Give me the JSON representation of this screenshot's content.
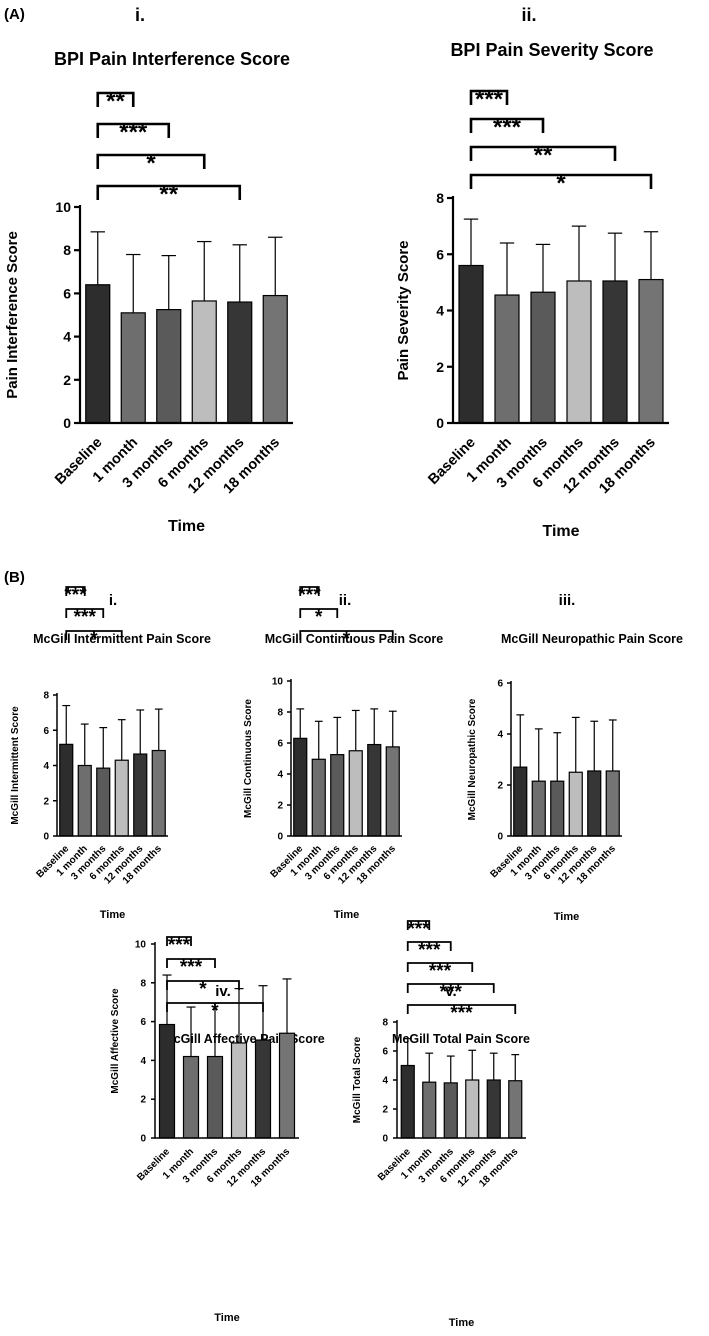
{
  "section_labels": [
    "(A)",
    "(B)"
  ],
  "chart_data": [
    {
      "type": "bar",
      "panel": "i.",
      "title": "BPI Pain Interference Score",
      "xlabel": "Time",
      "ylabel": "Pain Interference Score",
      "categories": [
        "Baseline",
        "1 month",
        "3 months",
        "6 months",
        "12 months",
        "18 months"
      ],
      "values": [
        6.4,
        5.1,
        5.25,
        5.65,
        5.6,
        5.9
      ],
      "error_upper": [
        8.85,
        7.8,
        7.75,
        8.4,
        8.25,
        8.6
      ],
      "ylim": [
        0,
        10
      ],
      "yticks": [
        "0",
        "2",
        "4",
        "6",
        "8",
        "10"
      ],
      "bar_colors": [
        "#2d2d2d",
        "#6e6e6e",
        "#5a5a5a",
        "#bdbdbd",
        "#363636",
        "#747474"
      ],
      "significance": [
        {
          "target": "1 month",
          "label": "**"
        },
        {
          "target": "3 months",
          "label": "***"
        },
        {
          "target": "6 months",
          "label": "*"
        },
        {
          "target": "12 months",
          "label": "**"
        }
      ]
    },
    {
      "type": "bar",
      "panel": "ii.",
      "title": "BPI Pain Severity Score",
      "xlabel": "Time",
      "ylabel": "Pain Severity Score",
      "categories": [
        "Baseline",
        "1 month",
        "3 months",
        "6 months",
        "12 months",
        "18 months"
      ],
      "values": [
        5.6,
        4.55,
        4.65,
        5.05,
        5.05,
        5.1
      ],
      "error_upper": [
        7.25,
        6.4,
        6.35,
        7.0,
        6.75,
        6.8
      ],
      "ylim": [
        0,
        8
      ],
      "yticks": [
        "0",
        "2",
        "4",
        "6",
        "8"
      ],
      "bar_colors": [
        "#2d2d2d",
        "#6e6e6e",
        "#5a5a5a",
        "#bdbdbd",
        "#363636",
        "#747474"
      ],
      "significance": [
        {
          "target": "1 month",
          "label": "***"
        },
        {
          "target": "3 months",
          "label": "***"
        },
        {
          "target": "12 months",
          "label": "**"
        },
        {
          "target": "18 months",
          "label": "*"
        }
      ]
    },
    {
      "type": "bar",
      "panel": "i.",
      "title": "McGill Intermittent Pain Score",
      "xlabel": "Time",
      "ylabel": "McGill Intermittent Score",
      "categories": [
        "Baseline",
        "1 month",
        "3 months",
        "6 months",
        "12 months",
        "18 months"
      ],
      "values": [
        5.2,
        4.0,
        3.85,
        4.3,
        4.65,
        4.85
      ],
      "error_upper": [
        7.4,
        6.35,
        6.15,
        6.6,
        7.15,
        7.2
      ],
      "ylim": [
        0,
        8
      ],
      "yticks": [
        "0",
        "2",
        "4",
        "6",
        "8"
      ],
      "bar_colors": [
        "#2d2d2d",
        "#6e6e6e",
        "#5a5a5a",
        "#bdbdbd",
        "#363636",
        "#747474"
      ],
      "significance": [
        {
          "target": "1 month",
          "label": "***"
        },
        {
          "target": "3 months",
          "label": "***"
        },
        {
          "target": "6 months",
          "label": "*"
        }
      ]
    },
    {
      "type": "bar",
      "panel": "ii.",
      "title": "McGill Continuous Pain Score",
      "xlabel": "Time",
      "ylabel": "McGill Continuous Score",
      "categories": [
        "Baseline",
        "1 month",
        "3 months",
        "6 months",
        "12 months",
        "18 months"
      ],
      "values": [
        6.3,
        4.95,
        5.25,
        5.5,
        5.9,
        5.75
      ],
      "error_upper": [
        8.2,
        7.4,
        7.65,
        8.1,
        8.2,
        8.05
      ],
      "ylim": [
        0,
        10
      ],
      "yticks": [
        "0",
        "2",
        "4",
        "6",
        "8",
        "10"
      ],
      "bar_colors": [
        "#2d2d2d",
        "#6e6e6e",
        "#5a5a5a",
        "#bdbdbd",
        "#363636",
        "#747474"
      ],
      "significance": [
        {
          "target": "1 month",
          "label": "***"
        },
        {
          "target": "3 months",
          "label": "*"
        },
        {
          "target": "18 months",
          "label": "*"
        }
      ]
    },
    {
      "type": "bar",
      "panel": "iii.",
      "title": "McGill Neuropathic Pain Score",
      "xlabel": "Time",
      "ylabel": "McGill Neuropathic Score",
      "categories": [
        "Baseline",
        "1 month",
        "3 months",
        "6 months",
        "12 months",
        "18 months"
      ],
      "values": [
        2.7,
        2.15,
        2.15,
        2.5,
        2.55,
        2.55
      ],
      "error_upper": [
        4.75,
        4.2,
        4.05,
        4.65,
        4.5,
        4.55
      ],
      "ylim": [
        0,
        6
      ],
      "yticks": [
        "0",
        "2",
        "4",
        "6"
      ],
      "bar_colors": [
        "#2d2d2d",
        "#6e6e6e",
        "#5a5a5a",
        "#bdbdbd",
        "#363636",
        "#747474"
      ],
      "significance": []
    },
    {
      "type": "bar",
      "panel": "iv.",
      "title": "McGill Affective Pain Score",
      "xlabel": "Time",
      "ylabel": "McGill Affective Score",
      "categories": [
        "Baseline",
        "1 month",
        "3 months",
        "6 months",
        "12 months",
        "18 months"
      ],
      "values": [
        5.85,
        4.2,
        4.2,
        4.9,
        5.05,
        5.4
      ],
      "error_upper": [
        8.4,
        6.75,
        6.95,
        7.7,
        7.85,
        8.2
      ],
      "ylim": [
        0,
        10
      ],
      "yticks": [
        "0",
        "2",
        "4",
        "6",
        "8",
        "10"
      ],
      "bar_colors": [
        "#2d2d2d",
        "#6e6e6e",
        "#5a5a5a",
        "#bdbdbd",
        "#363636",
        "#747474"
      ],
      "significance": [
        {
          "target": "1 month",
          "label": "***"
        },
        {
          "target": "3 months",
          "label": "***"
        },
        {
          "target": "6 months",
          "label": "*"
        },
        {
          "target": "12 months",
          "label": "*"
        }
      ]
    },
    {
      "type": "bar",
      "panel": "v.",
      "title": "McGill Total Pain Score",
      "xlabel": "Time",
      "ylabel": "McGill Total Score",
      "categories": [
        "Baseline",
        "1 month",
        "3 months",
        "6 months",
        "12 months",
        "18 months"
      ],
      "values": [
        5.0,
        3.85,
        3.8,
        4.0,
        4.0,
        3.95
      ],
      "error_upper": [
        6.85,
        5.85,
        5.65,
        6.05,
        5.85,
        5.75
      ],
      "ylim": [
        0,
        8
      ],
      "yticks": [
        "0",
        "2",
        "4",
        "6",
        "8"
      ],
      "bar_colors": [
        "#2d2d2d",
        "#6e6e6e",
        "#5a5a5a",
        "#bdbdbd",
        "#363636",
        "#747474"
      ],
      "significance": [
        {
          "target": "1 month",
          "label": "***"
        },
        {
          "target": "3 months",
          "label": "***"
        },
        {
          "target": "6 months",
          "label": "***"
        },
        {
          "target": "12 months",
          "label": "***"
        },
        {
          "target": "18 months",
          "label": "***"
        }
      ]
    }
  ]
}
